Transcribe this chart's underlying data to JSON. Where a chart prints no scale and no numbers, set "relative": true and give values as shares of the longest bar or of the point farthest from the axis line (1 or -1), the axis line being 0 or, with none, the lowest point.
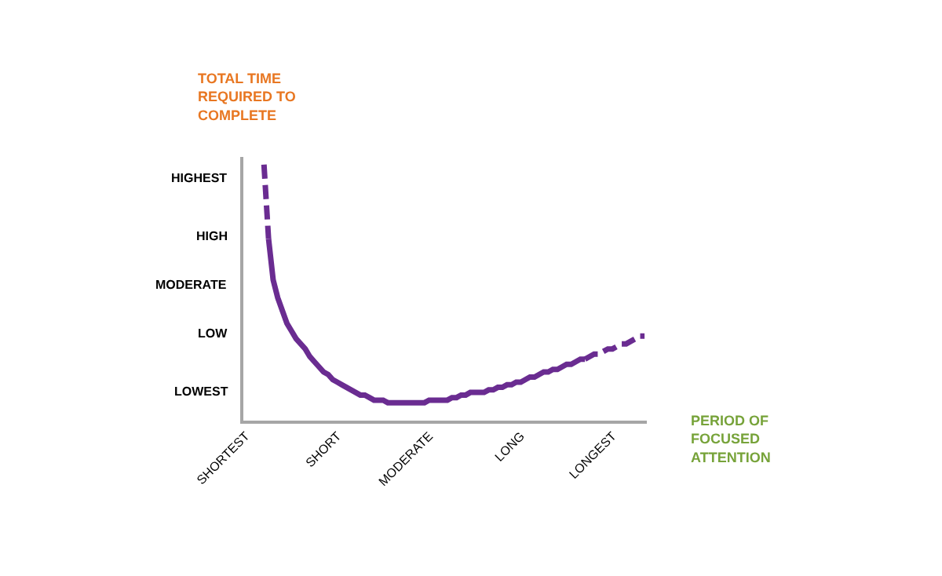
{
  "chart_data": {
    "type": "line",
    "relative": true,
    "xlabel": "PERIOD OF FOCUSED ATTENTION",
    "categories": [
      "SHORTEST",
      null,
      null,
      null,
      null,
      null,
      null,
      null,
      null,
      null,
      null,
      null,
      null,
      null,
      null,
      null,
      null,
      null,
      null,
      null,
      "SHORT",
      null,
      null,
      null,
      null,
      null,
      null,
      null,
      null,
      null,
      null,
      null,
      null,
      null,
      null,
      null,
      null,
      null,
      null,
      null,
      "MODERATE",
      null,
      null,
      null,
      null,
      null,
      null,
      null,
      null,
      null,
      null,
      null,
      null,
      null,
      null,
      null,
      null,
      null,
      null,
      null,
      "LONG",
      null,
      null,
      null,
      null,
      null,
      null,
      null,
      null,
      null,
      null,
      null,
      null,
      null,
      null,
      null,
      null,
      null,
      null,
      null,
      "LONGEST",
      null,
      null,
      null,
      null,
      null,
      null,
      null
    ],
    "annotations": [
      "TOTAL TIME REQUIRED TO COMPLETE",
      "LOWEST",
      "LOW",
      "MODERATE",
      "HIGH",
      "HIGHEST"
    ],
    "series": [
      {
        "color": "#6a2c91",
        "line_style": "dashed",
        "values": [
          null,
          null,
          null,
          null,
          1.0,
          0.71,
          null,
          null,
          null,
          null,
          null,
          null,
          null,
          null,
          null,
          null,
          null,
          null,
          null,
          null,
          null,
          null,
          null,
          null,
          null,
          null,
          null,
          null,
          null,
          null,
          null,
          null,
          null,
          null,
          null,
          null,
          null,
          null,
          null,
          null,
          null,
          null,
          null,
          null,
          null,
          null,
          null,
          null,
          null,
          null,
          null,
          null,
          null,
          null,
          null,
          null,
          null,
          null,
          null,
          null,
          null,
          null,
          null,
          null,
          null,
          null,
          null,
          null,
          null,
          null,
          null,
          null,
          null,
          null,
          null,
          null,
          null,
          null,
          null,
          null,
          null,
          null,
          null,
          null,
          null,
          null,
          null,
          null
        ]
      },
      {
        "color": "#6a2c91",
        "line_style": "solid",
        "values": [
          null,
          null,
          null,
          null,
          null,
          0.71,
          0.55,
          0.48,
          0.43,
          0.38,
          0.35,
          0.32,
          0.3,
          0.28,
          0.25,
          0.23,
          0.21,
          0.19,
          0.18,
          0.16,
          0.15,
          0.14,
          0.13,
          0.12,
          0.11,
          0.1,
          0.1,
          0.09,
          0.08,
          0.08,
          0.08,
          0.07,
          0.07,
          0.07,
          0.07,
          0.07,
          0.07,
          0.07,
          0.07,
          0.07,
          0.08,
          0.08,
          0.08,
          0.08,
          0.08,
          0.09,
          0.09,
          0.1,
          0.1,
          0.11,
          0.11,
          0.11,
          0.11,
          0.12,
          0.12,
          0.13,
          0.13,
          0.14,
          0.14,
          0.15,
          0.15,
          0.16,
          0.17,
          0.17,
          0.18,
          0.19,
          0.19,
          0.2,
          0.2,
          0.21,
          0.22,
          0.22,
          0.23,
          0.24,
          0.24,
          null,
          null,
          null,
          null,
          null,
          null,
          null,
          null,
          null,
          null,
          null,
          null,
          null
        ]
      },
      {
        "color": "#6a2c91",
        "line_style": "dashed",
        "values": [
          null,
          null,
          null,
          null,
          null,
          null,
          null,
          null,
          null,
          null,
          null,
          null,
          null,
          null,
          null,
          null,
          null,
          null,
          null,
          null,
          null,
          null,
          null,
          null,
          null,
          null,
          null,
          null,
          null,
          null,
          null,
          null,
          null,
          null,
          null,
          null,
          null,
          null,
          null,
          null,
          null,
          null,
          null,
          null,
          null,
          null,
          null,
          null,
          null,
          null,
          null,
          null,
          null,
          null,
          null,
          null,
          null,
          null,
          null,
          null,
          null,
          null,
          null,
          null,
          null,
          null,
          null,
          null,
          null,
          null,
          null,
          null,
          null,
          null,
          0.24,
          0.25,
          0.26,
          0.26,
          0.27,
          0.28,
          0.28,
          0.29,
          0.3,
          0.3,
          0.31,
          0.32,
          0.33,
          0.33
        ]
      }
    ]
  }
}
